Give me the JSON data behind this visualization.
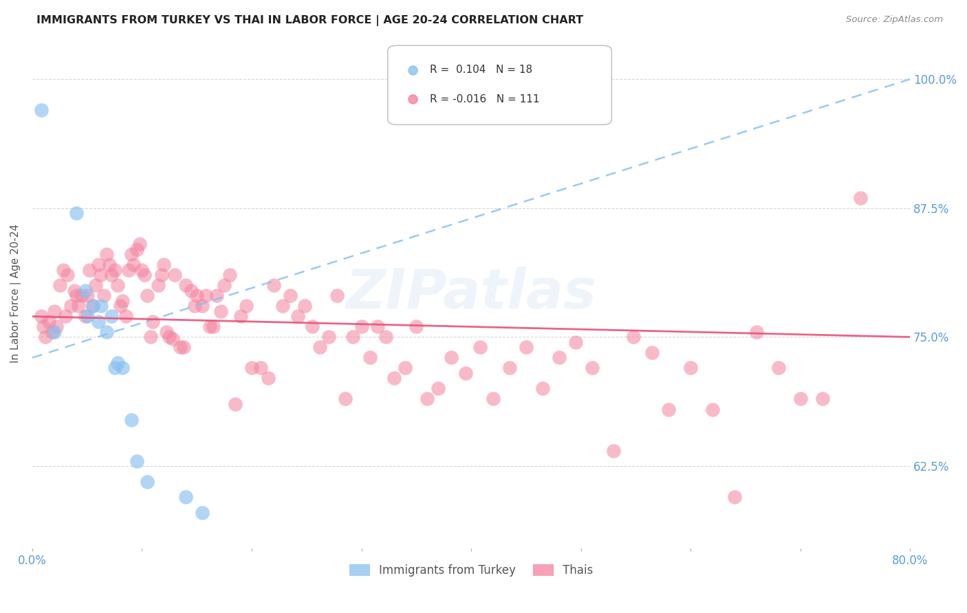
{
  "title": "IMMIGRANTS FROM TURKEY VS THAI IN LABOR FORCE | AGE 20-24 CORRELATION CHART",
  "source": "Source: ZipAtlas.com",
  "ylabel": "In Labor Force | Age 20-24",
  "y_ticks": [
    0.625,
    0.75,
    0.875,
    1.0
  ],
  "y_tick_labels": [
    "62.5%",
    "75.0%",
    "87.5%",
    "100.0%"
  ],
  "xlim": [
    0.0,
    0.8
  ],
  "ylim": [
    0.545,
    1.04
  ],
  "turkey_color": "#88C0F0",
  "thai_color": "#F4829E",
  "turkey_trend_color": "#88C0F0",
  "thai_trend_color": "#E8537A",
  "background_color": "#FFFFFF",
  "grid_color": "#CCCCCC",
  "axis_label_color": "#5B9BD5",
  "watermark": "ZIPatlas",
  "turkey_x": [
    0.008,
    0.02,
    0.04,
    0.048,
    0.05,
    0.055,
    0.06,
    0.063,
    0.068,
    0.072,
    0.075,
    0.078,
    0.082,
    0.09,
    0.095,
    0.105,
    0.14,
    0.155
  ],
  "turkey_y": [
    0.97,
    0.755,
    0.87,
    0.795,
    0.77,
    0.78,
    0.765,
    0.78,
    0.755,
    0.77,
    0.72,
    0.725,
    0.72,
    0.67,
    0.63,
    0.61,
    0.595,
    0.58
  ],
  "thai_x": [
    0.008,
    0.01,
    0.012,
    0.015,
    0.018,
    0.02,
    0.022,
    0.025,
    0.028,
    0.03,
    0.032,
    0.035,
    0.038,
    0.04,
    0.042,
    0.045,
    0.048,
    0.05,
    0.052,
    0.055,
    0.058,
    0.06,
    0.062,
    0.065,
    0.068,
    0.07,
    0.072,
    0.075,
    0.078,
    0.08,
    0.082,
    0.085,
    0.088,
    0.09,
    0.092,
    0.095,
    0.098,
    0.1,
    0.102,
    0.105,
    0.108,
    0.11,
    0.115,
    0.118,
    0.12,
    0.122,
    0.125,
    0.128,
    0.13,
    0.135,
    0.138,
    0.14,
    0.145,
    0.148,
    0.15,
    0.155,
    0.158,
    0.162,
    0.165,
    0.168,
    0.172,
    0.175,
    0.18,
    0.185,
    0.19,
    0.195,
    0.2,
    0.208,
    0.215,
    0.22,
    0.228,
    0.235,
    0.242,
    0.248,
    0.255,
    0.262,
    0.27,
    0.278,
    0.285,
    0.292,
    0.3,
    0.308,
    0.315,
    0.322,
    0.33,
    0.34,
    0.35,
    0.36,
    0.37,
    0.382,
    0.395,
    0.408,
    0.42,
    0.435,
    0.45,
    0.465,
    0.48,
    0.495,
    0.51,
    0.53,
    0.548,
    0.565,
    0.58,
    0.6,
    0.62,
    0.64,
    0.66,
    0.68,
    0.7,
    0.72,
    0.755
  ],
  "thai_y": [
    0.77,
    0.76,
    0.75,
    0.765,
    0.755,
    0.775,
    0.76,
    0.8,
    0.815,
    0.77,
    0.81,
    0.78,
    0.795,
    0.79,
    0.78,
    0.79,
    0.77,
    0.79,
    0.815,
    0.78,
    0.8,
    0.82,
    0.81,
    0.79,
    0.83,
    0.82,
    0.81,
    0.815,
    0.8,
    0.78,
    0.785,
    0.77,
    0.815,
    0.83,
    0.82,
    0.835,
    0.84,
    0.815,
    0.81,
    0.79,
    0.75,
    0.765,
    0.8,
    0.81,
    0.82,
    0.755,
    0.75,
    0.748,
    0.81,
    0.74,
    0.74,
    0.8,
    0.795,
    0.78,
    0.79,
    0.78,
    0.79,
    0.76,
    0.76,
    0.79,
    0.775,
    0.8,
    0.81,
    0.685,
    0.77,
    0.78,
    0.72,
    0.72,
    0.71,
    0.8,
    0.78,
    0.79,
    0.77,
    0.78,
    0.76,
    0.74,
    0.75,
    0.79,
    0.69,
    0.75,
    0.76,
    0.73,
    0.76,
    0.75,
    0.71,
    0.72,
    0.76,
    0.69,
    0.7,
    0.73,
    0.715,
    0.74,
    0.69,
    0.72,
    0.74,
    0.7,
    0.73,
    0.745,
    0.72,
    0.64,
    0.75,
    0.735,
    0.68,
    0.72,
    0.68,
    0.595,
    0.755,
    0.72,
    0.69,
    0.69,
    0.885
  ]
}
